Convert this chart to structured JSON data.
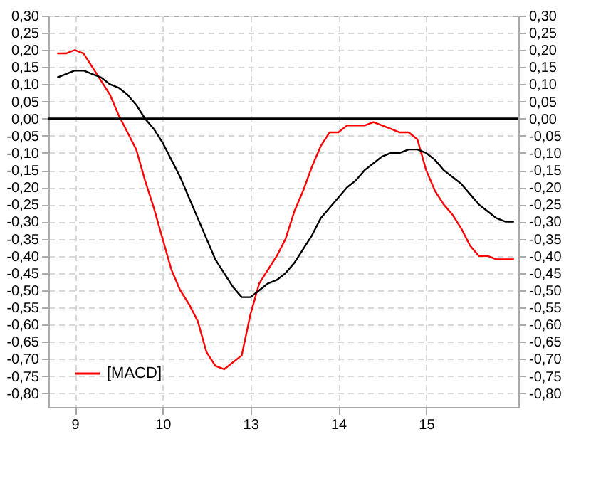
{
  "chart_data": {
    "type": "line",
    "categories": [
      null,
      null,
      "9",
      null,
      null,
      null,
      null,
      null,
      null,
      null,
      null,
      null,
      "10",
      null,
      null,
      null,
      null,
      null,
      null,
      null,
      null,
      null,
      "13",
      null,
      null,
      null,
      null,
      null,
      null,
      null,
      null,
      null,
      "14",
      null,
      null,
      null,
      null,
      null,
      null,
      null,
      null,
      null,
      "15",
      null,
      null,
      null,
      null,
      null,
      null,
      null,
      null,
      null,
      null
    ],
    "ylim": [
      -0.84,
      0.3
    ],
    "yticks": [
      {
        "value": 0.3,
        "label": "0,30"
      },
      {
        "value": 0.25,
        "label": "0,25"
      },
      {
        "value": 0.2,
        "label": "0,20"
      },
      {
        "value": 0.15,
        "label": "0,15"
      },
      {
        "value": 0.1,
        "label": "0,10"
      },
      {
        "value": 0.05,
        "label": "0,05"
      },
      {
        "value": 0,
        "label": "0,00"
      },
      {
        "value": -0.05,
        "label": "-0,05"
      },
      {
        "value": -0.1,
        "label": "-0,10"
      },
      {
        "value": -0.15,
        "label": "-0,15"
      },
      {
        "value": -0.2,
        "label": "-0,20"
      },
      {
        "value": -0.25,
        "label": "-0,25"
      },
      {
        "value": -0.3,
        "label": "-0,30"
      },
      {
        "value": -0.35,
        "label": "-0,35"
      },
      {
        "value": -0.4,
        "label": "-0,40"
      },
      {
        "value": -0.45,
        "label": "-0,45"
      },
      {
        "value": -0.5,
        "label": "-0,50"
      },
      {
        "value": -0.55,
        "label": "-0,55"
      },
      {
        "value": -0.6,
        "label": "-0,60"
      },
      {
        "value": -0.65,
        "label": "-0,65"
      },
      {
        "value": -0.7,
        "label": "-0,70"
      },
      {
        "value": -0.75,
        "label": "-0,75"
      },
      {
        "value": -0.8,
        "label": "-0,80"
      }
    ],
    "y2lim": [
      -0.84,
      0.3
    ],
    "y2ticks": [
      {
        "value": 0.3,
        "label": "0,30"
      },
      {
        "value": 0.25,
        "label": "0,25"
      },
      {
        "value": 0.2,
        "label": "0,20"
      },
      {
        "value": 0.15,
        "label": "0,15"
      },
      {
        "value": 0.1,
        "label": "0,10"
      },
      {
        "value": 0.05,
        "label": "0,05"
      },
      {
        "value": 0,
        "label": "0,00"
      },
      {
        "value": -0.05,
        "label": "-0,05"
      },
      {
        "value": -0.1,
        "label": "-0,10"
      },
      {
        "value": -0.15,
        "label": "-0,15"
      },
      {
        "value": -0.2,
        "label": "-0,20"
      },
      {
        "value": -0.25,
        "label": "-0,25"
      },
      {
        "value": -0.3,
        "label": "-0,30"
      },
      {
        "value": -0.35,
        "label": "-0,35"
      },
      {
        "value": -0.4,
        "label": "-0,40"
      },
      {
        "value": -0.45,
        "label": "-0,45"
      },
      {
        "value": -0.5,
        "label": "-0,50"
      },
      {
        "value": -0.55,
        "label": "-0,55"
      },
      {
        "value": -0.6,
        "label": "-0,60"
      },
      {
        "value": -0.65,
        "label": "-0,65"
      },
      {
        "value": -0.7,
        "label": "-0,70"
      },
      {
        "value": -0.75,
        "label": "-0,75"
      },
      {
        "value": -0.8,
        "label": "-0,80"
      }
    ],
    "series": [
      {
        "name": "[MACD]",
        "color": "#ff0000",
        "values": [
          0.19,
          0.19,
          0.2,
          0.19,
          0.15,
          0.11,
          0.07,
          0.01,
          -0.04,
          -0.09,
          -0.18,
          -0.26,
          -0.35,
          -0.44,
          -0.5,
          -0.54,
          -0.59,
          -0.68,
          -0.72,
          -0.73,
          -0.71,
          -0.69,
          -0.57,
          -0.48,
          -0.44,
          -0.4,
          -0.35,
          -0.27,
          -0.21,
          -0.14,
          -0.08,
          -0.04,
          -0.04,
          -0.02,
          -0.02,
          -0.02,
          -0.01,
          -0.02,
          -0.03,
          -0.04,
          -0.04,
          -0.06,
          -0.15,
          -0.21,
          -0.25,
          -0.28,
          -0.32,
          -0.37,
          -0.4,
          -0.4,
          -0.41,
          -0.41,
          -0.41
        ]
      },
      {
        "color": "#000000",
        "values": [
          0.12,
          0.13,
          0.14,
          0.14,
          0.13,
          0.12,
          0.1,
          0.09,
          0.07,
          0.04,
          0.0,
          -0.03,
          -0.07,
          -0.12,
          -0.17,
          -0.23,
          -0.29,
          -0.35,
          -0.41,
          -0.45,
          -0.49,
          -0.52,
          -0.52,
          -0.5,
          -0.48,
          -0.47,
          -0.45,
          -0.42,
          -0.38,
          -0.34,
          -0.29,
          -0.26,
          -0.23,
          -0.2,
          -0.18,
          -0.15,
          -0.13,
          -0.11,
          -0.1,
          -0.1,
          -0.09,
          -0.09,
          -0.1,
          -0.12,
          -0.15,
          -0.17,
          -0.19,
          -0.22,
          -0.25,
          -0.27,
          -0.29,
          -0.3,
          -0.3
        ]
      }
    ],
    "ref_lines": [
      {
        "axis": "y",
        "value": 0,
        "color": "#000000"
      }
    ],
    "grid": true,
    "legend": "bottom left"
  }
}
